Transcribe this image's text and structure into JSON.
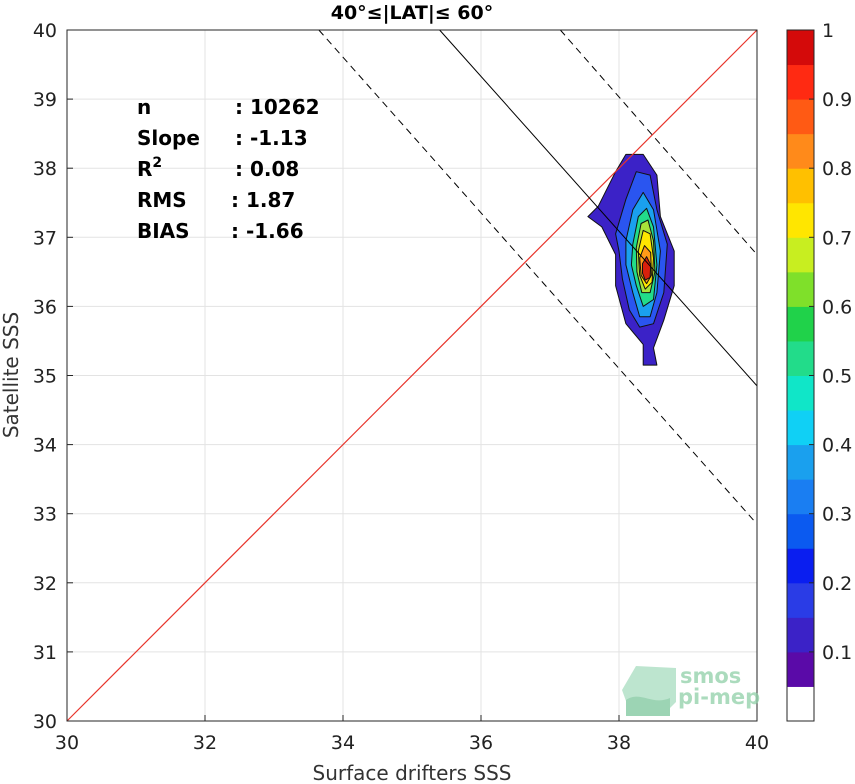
{
  "chart_data": {
    "type": "contour",
    "title": "40°≤|LAT|≤ 60°",
    "xlabel": "Surface drifters SSS",
    "ylabel": "Satellite SSS",
    "xlim": [
      30,
      40
    ],
    "ylim": [
      30,
      40
    ],
    "xticks": [
      "30",
      "32",
      "34",
      "36",
      "38",
      "40"
    ],
    "yticks": [
      "30",
      "31",
      "32",
      "33",
      "34",
      "35",
      "36",
      "37",
      "38",
      "39",
      "40"
    ],
    "grid": true,
    "stats": [
      {
        "label": "n",
        "value": ": 10262"
      },
      {
        "label": "Slope",
        "value": ": -1.13"
      },
      {
        "label": "R",
        "sup": "2",
        "value": ": 0.08"
      },
      {
        "label": "RMS",
        "value": ": 1.87"
      },
      {
        "label": "BIAS",
        "value": ": -1.66"
      }
    ],
    "identity_line": {
      "color": "#e8332a",
      "x": [
        30,
        40
      ],
      "y": [
        30,
        40
      ]
    },
    "fit_line": {
      "x": [
        35.4,
        40
      ],
      "y": [
        40,
        34.85
      ]
    },
    "fit_bounds": [
      {
        "x": [
          33.65,
          40
        ],
        "y": [
          40,
          32.85
        ]
      },
      {
        "x": [
          37.15,
          40
        ],
        "y": [
          40,
          36.75
        ]
      }
    ],
    "density_peak": {
      "x": 38.4,
      "y": 36.5
    },
    "contours": [
      {
        "level": 0.05,
        "color": "#3b22c7",
        "points": [
          [
            37.55,
            37.3
          ],
          [
            37.7,
            37.45
          ],
          [
            37.95,
            37.95
          ],
          [
            38.1,
            38.2
          ],
          [
            38.35,
            38.2
          ],
          [
            38.55,
            37.9
          ],
          [
            38.6,
            37.3
          ],
          [
            38.8,
            36.8
          ],
          [
            38.8,
            36.3
          ],
          [
            38.65,
            35.8
          ],
          [
            38.5,
            35.4
          ],
          [
            38.55,
            35.15
          ],
          [
            38.35,
            35.15
          ],
          [
            38.35,
            35.45
          ],
          [
            38.1,
            35.75
          ],
          [
            37.95,
            36.3
          ],
          [
            37.95,
            36.75
          ],
          [
            37.75,
            37.15
          ]
        ]
      },
      {
        "level": 0.15,
        "color": "#2a55f0",
        "points": [
          [
            37.95,
            37.05
          ],
          [
            38.1,
            37.55
          ],
          [
            38.25,
            37.95
          ],
          [
            38.45,
            37.9
          ],
          [
            38.55,
            37.4
          ],
          [
            38.7,
            36.9
          ],
          [
            38.65,
            36.2
          ],
          [
            38.5,
            35.75
          ],
          [
            38.3,
            35.7
          ],
          [
            38.15,
            35.95
          ],
          [
            38.05,
            36.4
          ],
          [
            38.0,
            36.8
          ]
        ]
      },
      {
        "level": 0.3,
        "color": "#1aa0ee",
        "points": [
          [
            38.1,
            36.95
          ],
          [
            38.2,
            37.4
          ],
          [
            38.35,
            37.65
          ],
          [
            38.5,
            37.4
          ],
          [
            38.6,
            36.8
          ],
          [
            38.55,
            36.2
          ],
          [
            38.45,
            35.85
          ],
          [
            38.3,
            35.85
          ],
          [
            38.2,
            36.2
          ],
          [
            38.1,
            36.6
          ]
        ]
      },
      {
        "level": 0.45,
        "color": "#22dc8a",
        "points": [
          [
            38.2,
            36.9
          ],
          [
            38.28,
            37.3
          ],
          [
            38.4,
            37.42
          ],
          [
            38.5,
            37.15
          ],
          [
            38.55,
            36.6
          ],
          [
            38.5,
            36.1
          ],
          [
            38.35,
            36.0
          ],
          [
            38.25,
            36.3
          ],
          [
            38.18,
            36.6
          ]
        ]
      },
      {
        "level": 0.55,
        "color": "#a8e23a",
        "points": [
          [
            38.25,
            36.85
          ],
          [
            38.32,
            37.2
          ],
          [
            38.42,
            37.25
          ],
          [
            38.5,
            36.95
          ],
          [
            38.52,
            36.5
          ],
          [
            38.45,
            36.2
          ],
          [
            38.33,
            36.2
          ],
          [
            38.26,
            36.5
          ]
        ]
      },
      {
        "level": 0.65,
        "color": "#ffe600",
        "points": [
          [
            38.28,
            36.8
          ],
          [
            38.35,
            37.1
          ],
          [
            38.45,
            37.05
          ],
          [
            38.5,
            36.7
          ],
          [
            38.48,
            36.35
          ],
          [
            38.38,
            36.25
          ],
          [
            38.3,
            36.45
          ]
        ]
      },
      {
        "level": 0.75,
        "color": "#ff9a18",
        "points": [
          [
            38.3,
            36.7
          ],
          [
            38.37,
            36.88
          ],
          [
            38.46,
            36.78
          ],
          [
            38.47,
            36.45
          ],
          [
            38.4,
            36.33
          ],
          [
            38.32,
            36.45
          ]
        ]
      },
      {
        "level": 0.9,
        "color": "#d9200c",
        "points": [
          [
            38.34,
            36.62
          ],
          [
            38.4,
            36.72
          ],
          [
            38.46,
            36.6
          ],
          [
            38.45,
            36.42
          ],
          [
            38.38,
            36.38
          ],
          [
            38.34,
            36.48
          ]
        ]
      }
    ],
    "colorbar": {
      "levels": [
        0,
        0.05,
        0.1,
        0.15,
        0.2,
        0.25,
        0.3,
        0.35,
        0.4,
        0.45,
        0.5,
        0.55,
        0.6,
        0.65,
        0.7,
        0.75,
        0.8,
        0.85,
        0.9,
        0.95,
        1
      ],
      "colors": [
        "#ffffff",
        "#5a0aa8",
        "#3b22c7",
        "#2a3ce6",
        "#0a1ef0",
        "#0b5af0",
        "#1a7ef2",
        "#1aa0ee",
        "#10d0f5",
        "#10e6c8",
        "#22dc8a",
        "#20d24a",
        "#7fe02a",
        "#c8ee20",
        "#ffe600",
        "#ffc000",
        "#ff8a1a",
        "#ff5a14",
        "#ff2a12",
        "#d40a0a",
        "#8a0000"
      ],
      "tick_labels": [
        "0.1",
        "0.2",
        "0.3",
        "0.4",
        "0.5",
        "0.6",
        "0.7",
        "0.8",
        "0.9",
        "1"
      ]
    }
  },
  "watermark": {
    "line1": "smos",
    "line2": "pi-mep"
  }
}
